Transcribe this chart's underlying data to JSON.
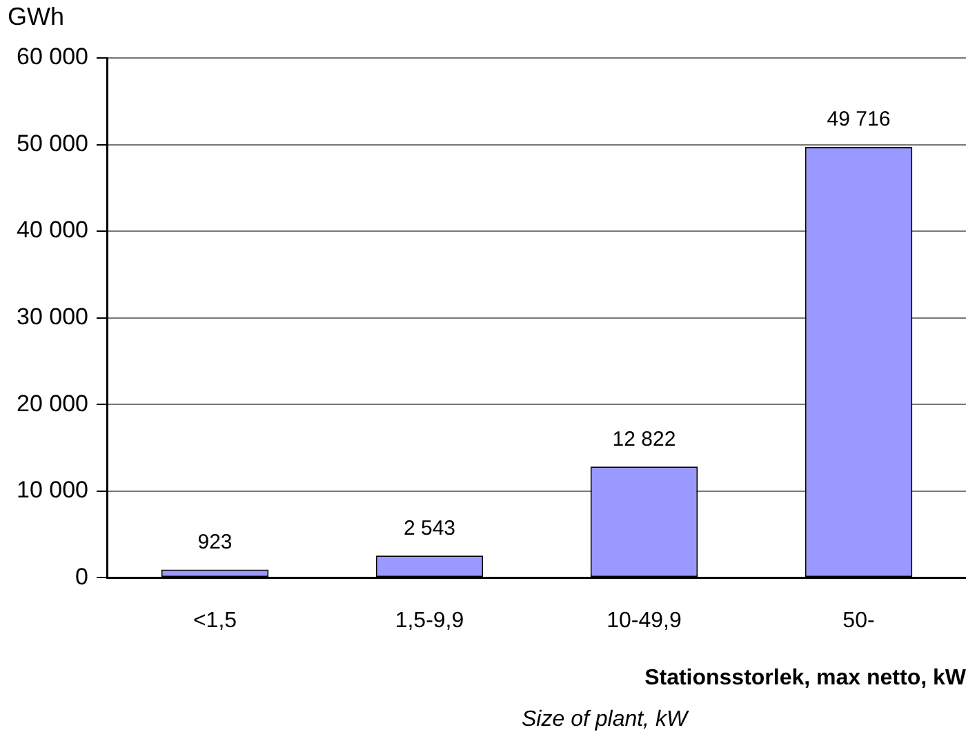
{
  "chart_data": {
    "type": "bar",
    "ylabel": "GWh",
    "xlabel": "Stationsstorlek, max netto, kW",
    "annotations": [
      "Size of plant, kW"
    ],
    "categories": [
      "<1,5",
      "1,5-9,9",
      "10-49,9",
      "50-"
    ],
    "values": [
      923,
      2543,
      12822,
      49716
    ],
    "value_labels": [
      "923",
      "2 543",
      "12 822",
      "49 716"
    ],
    "color": "#9999ff",
    "ylim": [
      0,
      60000
    ],
    "yticks": [
      {
        "value": 0,
        "label": "0"
      },
      {
        "value": 10000,
        "label": "10 000"
      },
      {
        "value": 20000,
        "label": "20 000"
      },
      {
        "value": 30000,
        "label": "30 000"
      },
      {
        "value": 40000,
        "label": "40 000"
      },
      {
        "value": 50000,
        "label": "50 000"
      },
      {
        "value": 60000,
        "label": "60 000"
      }
    ],
    "grid": "y",
    "legend": false
  }
}
